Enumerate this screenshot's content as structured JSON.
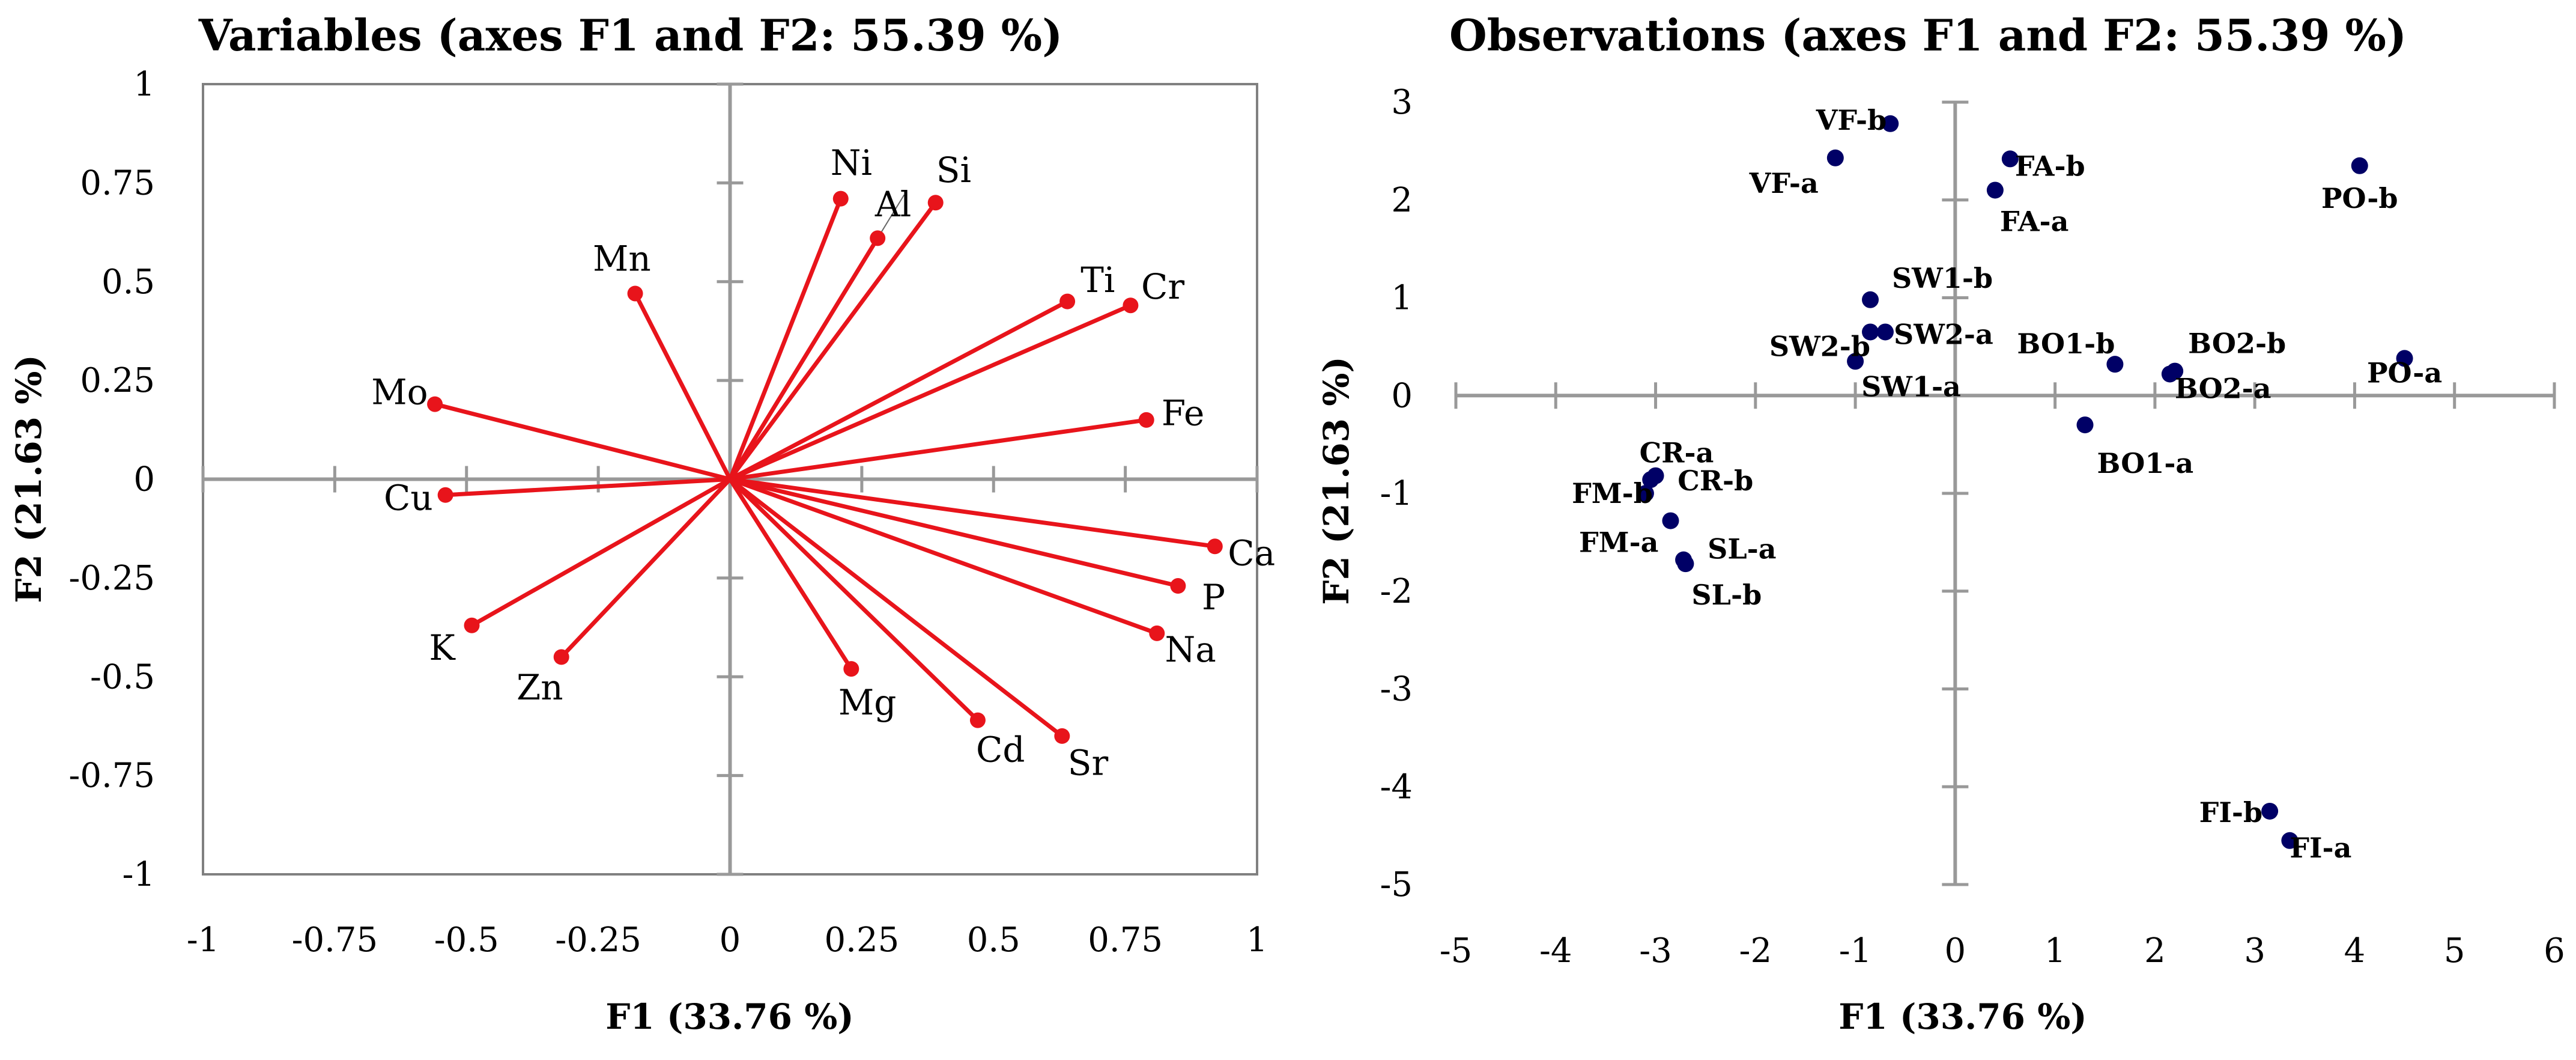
{
  "chart_data": [
    {
      "type": "scatter",
      "subtype": "correlation-circle-biplot",
      "title": "Variables (axes F1 and F2: 55.39 %)",
      "xlabel": "F1 (33.76 %)",
      "ylabel": "F2 (21.63 %)",
      "xlim": [
        -1,
        1
      ],
      "ylim": [
        -1,
        1
      ],
      "xticks": [
        -1,
        -0.75,
        -0.5,
        -0.25,
        0,
        0.25,
        0.5,
        0.75,
        1
      ],
      "xtick_labels": [
        "-1",
        "-0.75",
        "-0.5",
        "-0.25",
        "0",
        "0.25",
        "0.5",
        "0.75",
        "1"
      ],
      "yticks": [
        1,
        0.75,
        0.5,
        0.25,
        0,
        -0.25,
        -0.5,
        -0.75,
        -1
      ],
      "ytick_labels": [
        "1",
        "0.75",
        "0.5",
        "0.25",
        "0",
        "-0.25",
        "-0.5",
        "-0.75",
        "-1"
      ],
      "vector_color": "#e8141b",
      "points": [
        {
          "label": "Ni",
          "x": 0.21,
          "y": 0.71
        },
        {
          "label": "Al",
          "x": 0.28,
          "y": 0.61
        },
        {
          "label": "Si",
          "x": 0.39,
          "y": 0.7
        },
        {
          "label": "Mn",
          "x": -0.18,
          "y": 0.47
        },
        {
          "label": "Ti",
          "x": 0.64,
          "y": 0.45
        },
        {
          "label": "Cr",
          "x": 0.76,
          "y": 0.44
        },
        {
          "label": "Mo",
          "x": -0.56,
          "y": 0.19
        },
        {
          "label": "Fe",
          "x": 0.79,
          "y": 0.15
        },
        {
          "label": "Cu",
          "x": -0.54,
          "y": -0.04
        },
        {
          "label": "Ca",
          "x": 0.92,
          "y": -0.17
        },
        {
          "label": "P",
          "x": 0.85,
          "y": -0.27
        },
        {
          "label": "Na",
          "x": 0.81,
          "y": -0.39
        },
        {
          "label": "K",
          "x": -0.49,
          "y": -0.37
        },
        {
          "label": "Zn",
          "x": -0.32,
          "y": -0.45
        },
        {
          "label": "Mg",
          "x": 0.23,
          "y": -0.48
        },
        {
          "label": "Cd",
          "x": 0.47,
          "y": -0.61
        },
        {
          "label": "Sr",
          "x": 0.63,
          "y": -0.65
        }
      ]
    },
    {
      "type": "scatter",
      "title": "Observations (axes F1 and F2: 55.39 %)",
      "xlabel": "F1 (33.76 %)",
      "ylabel": "F2 (21.63 %)",
      "xlim": [
        -5,
        6
      ],
      "ylim": [
        -5,
        3
      ],
      "xticks": [
        -5,
        -4,
        -3,
        -2,
        -1,
        0,
        1,
        2,
        3,
        4,
        5,
        6
      ],
      "xtick_labels": [
        "-5",
        "-4",
        "-3",
        "-2",
        "-1",
        "0",
        "1",
        "2",
        "3",
        "4",
        "5",
        "6"
      ],
      "yticks": [
        3,
        2,
        1,
        0,
        -1,
        -2,
        -3,
        -4,
        -5
      ],
      "ytick_labels": [
        "3",
        "2",
        "1",
        "0",
        "-1",
        "-2",
        "-3",
        "-4",
        "-5"
      ],
      "point_color": "#000066",
      "points": [
        {
          "label": "VF-b",
          "x": -0.65,
          "y": 2.78
        },
        {
          "label": "VF-a",
          "x": -1.2,
          "y": 2.43
        },
        {
          "label": "FA-b",
          "x": 0.55,
          "y": 2.42
        },
        {
          "label": "FA-a",
          "x": 0.4,
          "y": 2.1
        },
        {
          "label": "PO-b",
          "x": 4.05,
          "y": 2.35
        },
        {
          "label": "SW1-b",
          "x": -0.85,
          "y": 0.98
        },
        {
          "label": "SW2-b",
          "x": -0.85,
          "y": 0.65
        },
        {
          "label": "SW2-a",
          "x": -0.7,
          "y": 0.65
        },
        {
          "label": "SW1-a",
          "x": -1.0,
          "y": 0.35
        },
        {
          "label": "BO1-b",
          "x": 1.6,
          "y": 0.32
        },
        {
          "label": "BO2-b",
          "x": 2.2,
          "y": 0.25
        },
        {
          "label": "BO2-a",
          "x": 2.15,
          "y": 0.22
        },
        {
          "label": "PO-a",
          "x": 4.5,
          "y": 0.38
        },
        {
          "label": "BO1-a",
          "x": 1.3,
          "y": -0.3
        },
        {
          "label": "CR-a",
          "x": -3.0,
          "y": -0.82
        },
        {
          "label": "CR-b",
          "x": -3.05,
          "y": -0.86
        },
        {
          "label": "FM-b",
          "x": -3.1,
          "y": -1.0
        },
        {
          "label": "FM-a",
          "x": -2.85,
          "y": -1.28
        },
        {
          "label": "SL-a",
          "x": -2.72,
          "y": -1.68
        },
        {
          "label": "SL-b",
          "x": -2.7,
          "y": -1.72
        },
        {
          "label": "FI-b",
          "x": 3.15,
          "y": -4.25
        },
        {
          "label": "FI-a",
          "x": 3.35,
          "y": -4.55
        }
      ]
    }
  ]
}
